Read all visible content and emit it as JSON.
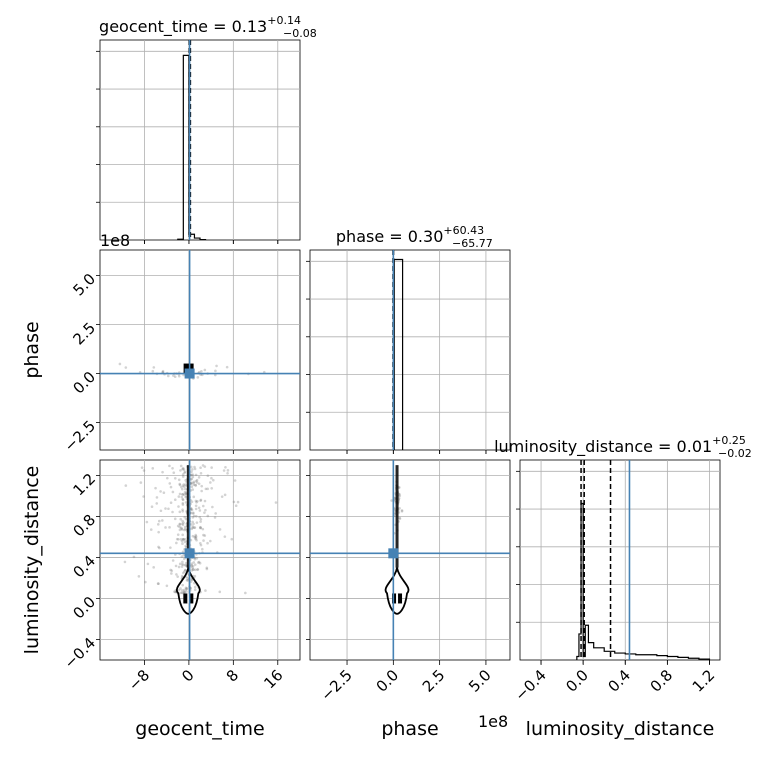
{
  "chart_data": [
    {
      "type": "histogram",
      "panel": "geocent_time-1d",
      "title": {
        "param": "geocent_time",
        "median": "0.13",
        "plus": "+0.14",
        "minus": "−0.08"
      },
      "xlim": [
        -16,
        20
      ],
      "bin_edges": [
        -2,
        -1,
        0,
        1,
        2,
        3
      ],
      "counts": [
        0.02,
        4.8,
        0.15,
        0.05,
        0.01
      ],
      "ymax": 5.2,
      "quantile_lines": [
        0.05,
        0.13,
        0.27
      ],
      "truth": 0.13,
      "grid": true
    },
    {
      "type": "histogram",
      "panel": "phase-1d",
      "title": {
        "param": "phase",
        "median": "0.30",
        "plus": "+60.43",
        "minus": "−65.77"
      },
      "xlim": [
        -4.5,
        6.3
      ],
      "bin_edges": [
        0.05,
        0.5
      ],
      "counts": [
        1
      ],
      "ymax": 1.05,
      "quantile_lines": [
        -0.02,
        0.0,
        0.01
      ],
      "truth": 0.0,
      "grid": true
    },
    {
      "type": "histogram",
      "panel": "luminosity_distance-1d",
      "title": {
        "param": "luminosity_distance",
        "median": "0.01",
        "plus": "+0.25",
        "minus": "−0.02"
      },
      "xlim": [
        -0.6,
        1.3
      ],
      "bin_edges": [
        -0.06,
        -0.04,
        -0.02,
        0.0,
        0.02,
        0.05,
        0.1,
        0.2,
        0.3,
        0.4,
        0.5,
        0.6,
        0.7,
        0.8,
        0.9,
        1.0,
        1.1,
        1.2
      ],
      "counts": [
        0.02,
        0.15,
        0.9,
        0.02,
        0.2,
        0.1,
        0.07,
        0.05,
        0.04,
        0.035,
        0.03,
        0.03,
        0.025,
        0.02,
        0.015,
        0.01,
        0.005
      ],
      "ymax": 1.15,
      "quantile_lines": [
        -0.02,
        0.01,
        0.26
      ],
      "truth": 0.44,
      "grid": true
    },
    {
      "type": "scatter-contour",
      "panel": "geocent_time-vs-phase",
      "xlim": [
        -16,
        20
      ],
      "ylim": [
        -3.9,
        6.3
      ],
      "truth": {
        "x": 0.13,
        "y": 0.0
      },
      "core": {
        "x": -0.05,
        "y": 0.05
      },
      "grid": true
    },
    {
      "type": "scatter-contour",
      "panel": "geocent_time-vs-luminosity_distance",
      "xlim": [
        -16,
        20
      ],
      "ylim": [
        -0.6,
        1.35
      ],
      "truth": {
        "x": 0.13,
        "y": 0.44
      },
      "core": {
        "x": -0.1,
        "y": 0.0
      },
      "grid": true
    },
    {
      "type": "scatter-contour",
      "panel": "phase-vs-luminosity_distance",
      "xlim": [
        -4.5,
        6.3
      ],
      "ylim": [
        -0.6,
        1.35
      ],
      "truth": {
        "x": 0.0,
        "y": 0.44
      },
      "core": {
        "x": 0.2,
        "y": 0.0
      },
      "grid": true
    }
  ],
  "labels": {
    "geocent_time": "geocent_time",
    "phase": "phase",
    "luminosity_distance": "luminosity_distance"
  },
  "offsets": {
    "phase_y": "1e8",
    "phase_x": "1e8"
  },
  "ticks": {
    "geocent_time": {
      "values": [
        -8,
        0,
        8,
        16
      ],
      "labels": [
        "−8",
        "0",
        "8",
        "16"
      ]
    },
    "phase": {
      "values": [
        -2.5,
        0.0,
        2.5,
        5.0
      ],
      "labels": [
        "−2.5",
        "0.0",
        "2.5",
        "5.0"
      ]
    },
    "luminosity_distance": {
      "values": [
        -0.4,
        0.0,
        0.4,
        0.8,
        1.2
      ],
      "labels": [
        "−0.4",
        "0.0",
        "0.4",
        "0.8",
        "1.2"
      ]
    }
  },
  "colors": {
    "truth": "#4682b4",
    "hist": "#000000",
    "grid": "#b0b0b0",
    "points": "#808080"
  }
}
